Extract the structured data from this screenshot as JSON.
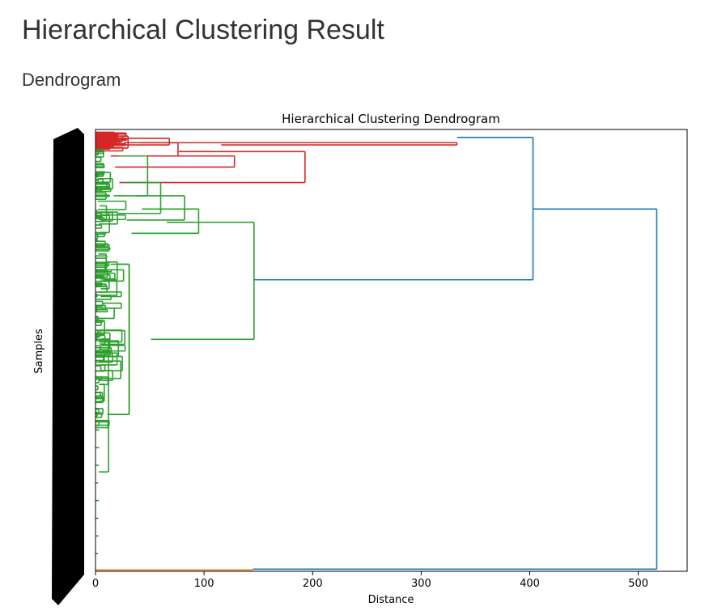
{
  "page": {
    "title": "Hierarchical Clustering Result",
    "section": "Dendrogram"
  },
  "chart_data": {
    "type": "dendrogram",
    "orientation": "horizontal-right",
    "title": "Hierarchical Clustering Dendrogram",
    "xlabel": "Distance",
    "ylabel": "Samples",
    "xlim": [
      0,
      545
    ],
    "xticks": [
      0,
      100,
      200,
      300,
      400,
      500
    ],
    "colors": {
      "red_cluster": "#d62728",
      "green_cluster": "#2ca02c",
      "above_threshold": "#1f77b4",
      "orange_cluster": "#ff7f0e",
      "leaf_labels": "#000000"
    },
    "leaf_count_estimate": 300,
    "merges": [
      {
        "id": "R1",
        "color": "red",
        "distance": 68,
        "from": [
          0.02,
          0.035
        ]
      },
      {
        "id": "R2",
        "color": "red",
        "distance": 76,
        "from": [
          0.03,
          0.06
        ]
      },
      {
        "id": "R3",
        "color": "red",
        "distance": 128,
        "from": [
          0.06,
          0.085
        ]
      },
      {
        "id": "R4",
        "color": "red",
        "distance": 193,
        "from": [
          0.05,
          0.12
        ]
      },
      {
        "id": "R5",
        "color": "red",
        "distance": 333,
        "from": [
          0.035,
          0.03
        ]
      },
      {
        "id": "G1",
        "color": "green",
        "distance": 48,
        "from": [
          0.06,
          0.15
        ]
      },
      {
        "id": "G2",
        "color": "green",
        "distance": 60,
        "from": [
          0.12,
          0.19
        ]
      },
      {
        "id": "G3",
        "color": "green",
        "distance": 82,
        "from": [
          0.15,
          0.205
        ]
      },
      {
        "id": "G4",
        "color": "green",
        "distance": 95,
        "from": [
          0.18,
          0.235
        ]
      },
      {
        "id": "G5",
        "color": "green",
        "distance": 20,
        "from": [
          0.3,
          0.34
        ]
      },
      {
        "id": "G6",
        "color": "green",
        "distance": 31,
        "from": [
          0.305,
          0.645
        ]
      },
      {
        "id": "G7",
        "color": "green",
        "distance": 146,
        "from": [
          0.21,
          0.475
        ]
      },
      {
        "id": "B1",
        "color": "blue",
        "distance": 403,
        "from": [
          0.018,
          0.34
        ]
      },
      {
        "id": "B2",
        "color": "blue",
        "distance": 517,
        "from": [
          0.18,
          0.995
        ]
      }
    ]
  }
}
